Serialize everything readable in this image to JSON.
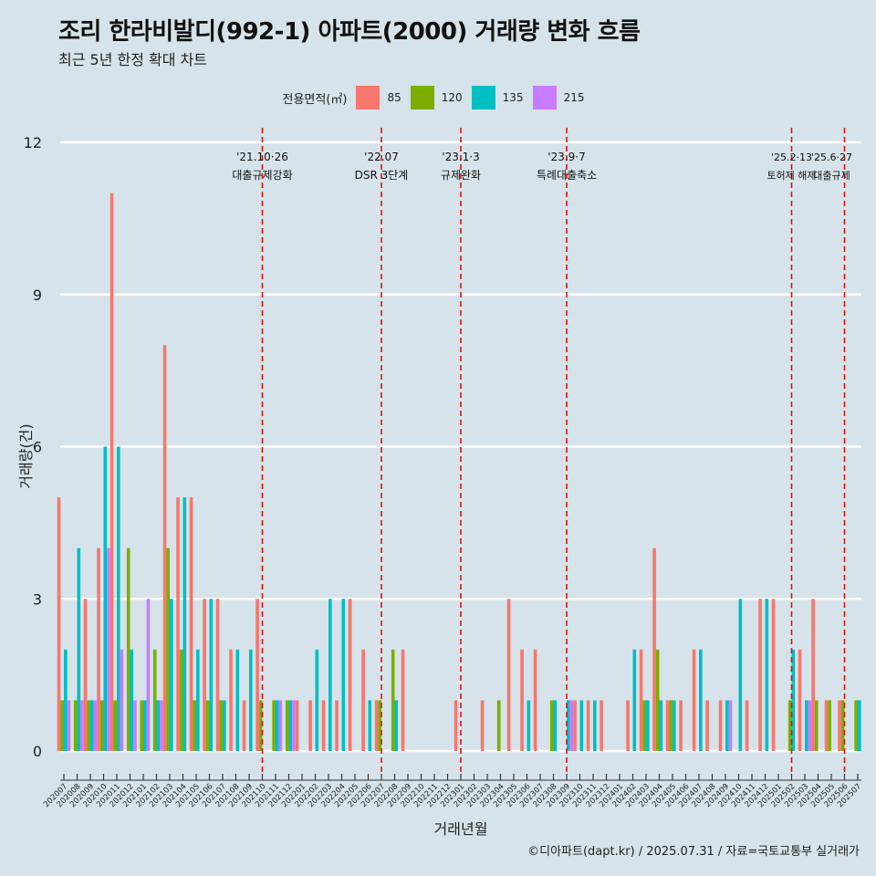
{
  "title": "조리 한라비발디(992-1) 아파트(2000) 거래량 변화 흐름",
  "subtitle": "최근 5년 한정 확대 차트",
  "caption": "©디아파트(dapt.kr) / 2025.07.31 / 자료=국토교통부 실거래가",
  "legend": {
    "title": "전용면적(㎡)",
    "items": [
      {
        "label": "85",
        "color": "#f8766d"
      },
      {
        "label": "120",
        "color": "#7cae00"
      },
      {
        "label": "135",
        "color": "#00bfc4"
      },
      {
        "label": "215",
        "color": "#c77cff"
      }
    ]
  },
  "chart_data": {
    "type": "bar",
    "title": "조리 한라비발디(992-1) 아파트(2000) 거래량 변화 흐름",
    "xlabel": "거래년월",
    "ylabel": "거래량(건)",
    "ylim": [
      0,
      12
    ],
    "yticks": [
      0,
      3,
      6,
      9,
      12
    ],
    "categories": [
      "202007",
      "202008",
      "202009",
      "202010",
      "202011",
      "202012",
      "202101",
      "202102",
      "202103",
      "202104",
      "202105",
      "202106",
      "202107",
      "202108",
      "202109",
      "202110",
      "202111",
      "202112",
      "202201",
      "202202",
      "202203",
      "202204",
      "202205",
      "202206",
      "202207",
      "202208",
      "202209",
      "202210",
      "202211",
      "202212",
      "202301",
      "202302",
      "202303",
      "202304",
      "202305",
      "202306",
      "202307",
      "202308",
      "202309",
      "202310",
      "202311",
      "202312",
      "202401",
      "202402",
      "202403",
      "202404",
      "202405",
      "202406",
      "202407",
      "202408",
      "202409",
      "202410",
      "202411",
      "202412",
      "202501",
      "202502",
      "202503",
      "202504",
      "202505",
      "202506",
      "202507"
    ],
    "series": [
      {
        "name": "85",
        "color": "#f8766d",
        "values": [
          5,
          0,
          3,
          4,
          11,
          0,
          0,
          0,
          8,
          5,
          5,
          3,
          3,
          2,
          1,
          3,
          0,
          0,
          1,
          1,
          1,
          1,
          3,
          2,
          1,
          0,
          2,
          0,
          0,
          0,
          1,
          0,
          1,
          0,
          3,
          2,
          2,
          0,
          0,
          1,
          1,
          1,
          0,
          1,
          2,
          4,
          1,
          1,
          2,
          1,
          1,
          0,
          1,
          3,
          3,
          0,
          2,
          3,
          1,
          1,
          0
        ]
      },
      {
        "name": "120",
        "color": "#7cae00",
        "values": [
          1,
          1,
          1,
          1,
          1,
          4,
          1,
          2,
          4,
          2,
          1,
          1,
          1,
          0,
          0,
          1,
          1,
          1,
          0,
          0,
          0,
          0,
          0,
          0,
          1,
          2,
          0,
          0,
          0,
          0,
          0,
          0,
          0,
          1,
          0,
          0,
          0,
          1,
          0,
          0,
          0,
          0,
          0,
          0,
          1,
          2,
          1,
          0,
          0,
          0,
          0,
          0,
          0,
          0,
          0,
          1,
          0,
          1,
          1,
          1,
          1
        ]
      },
      {
        "name": "135",
        "color": "#00bfc4",
        "values": [
          2,
          4,
          1,
          6,
          6,
          2,
          1,
          1,
          3,
          5,
          2,
          3,
          1,
          2,
          2,
          0,
          1,
          1,
          0,
          2,
          3,
          3,
          0,
          1,
          0,
          1,
          0,
          0,
          0,
          0,
          0,
          0,
          0,
          0,
          0,
          1,
          0,
          1,
          1,
          1,
          1,
          0,
          0,
          2,
          1,
          1,
          1,
          0,
          2,
          0,
          1,
          3,
          0,
          3,
          0,
          2,
          1,
          0,
          0,
          0,
          1
        ]
      },
      {
        "name": "215",
        "color": "#c77cff",
        "values": [
          1,
          1,
          1,
          4,
          2,
          1,
          3,
          1,
          0,
          0,
          0,
          0,
          0,
          0,
          0,
          0,
          1,
          1,
          0,
          0,
          0,
          0,
          0,
          0,
          0,
          0,
          0,
          0,
          0,
          0,
          0,
          0,
          0,
          0,
          0,
          0,
          0,
          0,
          1,
          0,
          0,
          0,
          0,
          0,
          0,
          0,
          0,
          0,
          0,
          0,
          1,
          0,
          0,
          0,
          0,
          0,
          1,
          0,
          0,
          0,
          0
        ]
      }
    ],
    "events": [
      {
        "month": "202110",
        "date": "'21.10·26",
        "label": "대출규제강화"
      },
      {
        "month": "202207",
        "date": "'22.07",
        "label": "DSR 3단계"
      },
      {
        "month": "202301",
        "date": "'23.1·3",
        "label": "규제완화"
      },
      {
        "month": "202309",
        "date": "'23.9·7",
        "label": "특례대출축소"
      },
      {
        "month": "202502",
        "date": "'25.2·13",
        "label": "토허제 해제"
      },
      {
        "month": "202506",
        "date": "'25.6·27",
        "label": "대출규제"
      }
    ]
  }
}
